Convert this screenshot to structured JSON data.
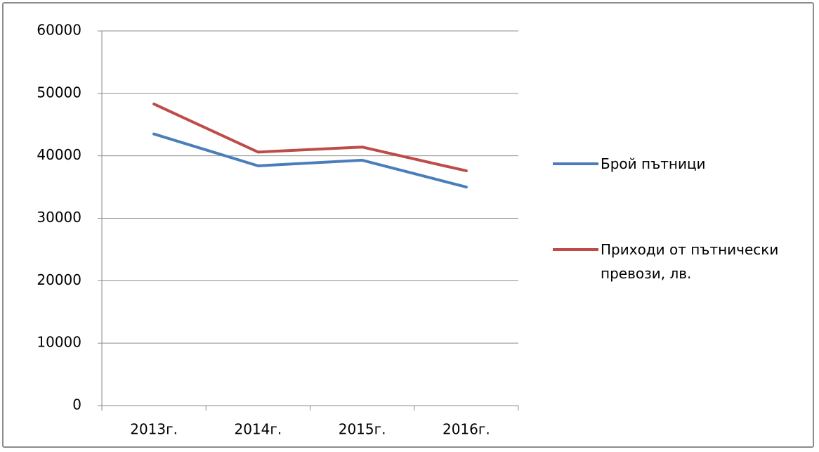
{
  "chart_data": {
    "type": "line",
    "categories": [
      "2013г.",
      "2014г.",
      "2015г.",
      "2016г."
    ],
    "series": [
      {
        "name": "Брой пътници",
        "color": "#4a7ebb",
        "values": [
          43500,
          38400,
          39300,
          35000
        ]
      },
      {
        "name": "Приходи от пътнически превози, лв.",
        "color": "#be4b48",
        "values": [
          48300,
          40600,
          41400,
          37600
        ]
      }
    ],
    "ylim": [
      0,
      60000
    ],
    "yticks": [
      0,
      10000,
      20000,
      30000,
      40000,
      50000,
      60000
    ],
    "grid": true,
    "legend": "right"
  }
}
